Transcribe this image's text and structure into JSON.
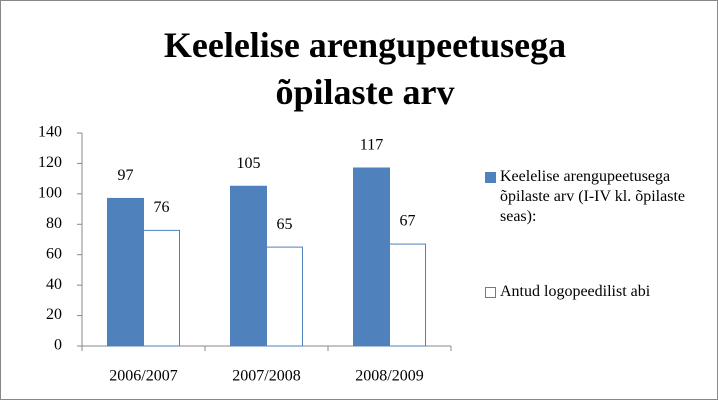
{
  "chart_data": {
    "type": "bar",
    "title": "Keelelise arengupeetusega õpilaste arv",
    "categories": [
      "2006/2007",
      "2007/2008",
      "2008/2009"
    ],
    "series": [
      {
        "name": "Keelelise arengupeetusega õpilaste arv (I-IV kl. õpilaste seas):",
        "color": "#4f81bd",
        "values": [
          97,
          105,
          117
        ]
      },
      {
        "name": "Antud logopeedilist abi",
        "color": "#ffffff",
        "values": [
          76,
          65,
          67
        ]
      }
    ],
    "ylim": [
      0,
      140
    ],
    "yticks": [
      0,
      20,
      40,
      60,
      80,
      100,
      120,
      140
    ],
    "grid": false,
    "legend": "right"
  }
}
